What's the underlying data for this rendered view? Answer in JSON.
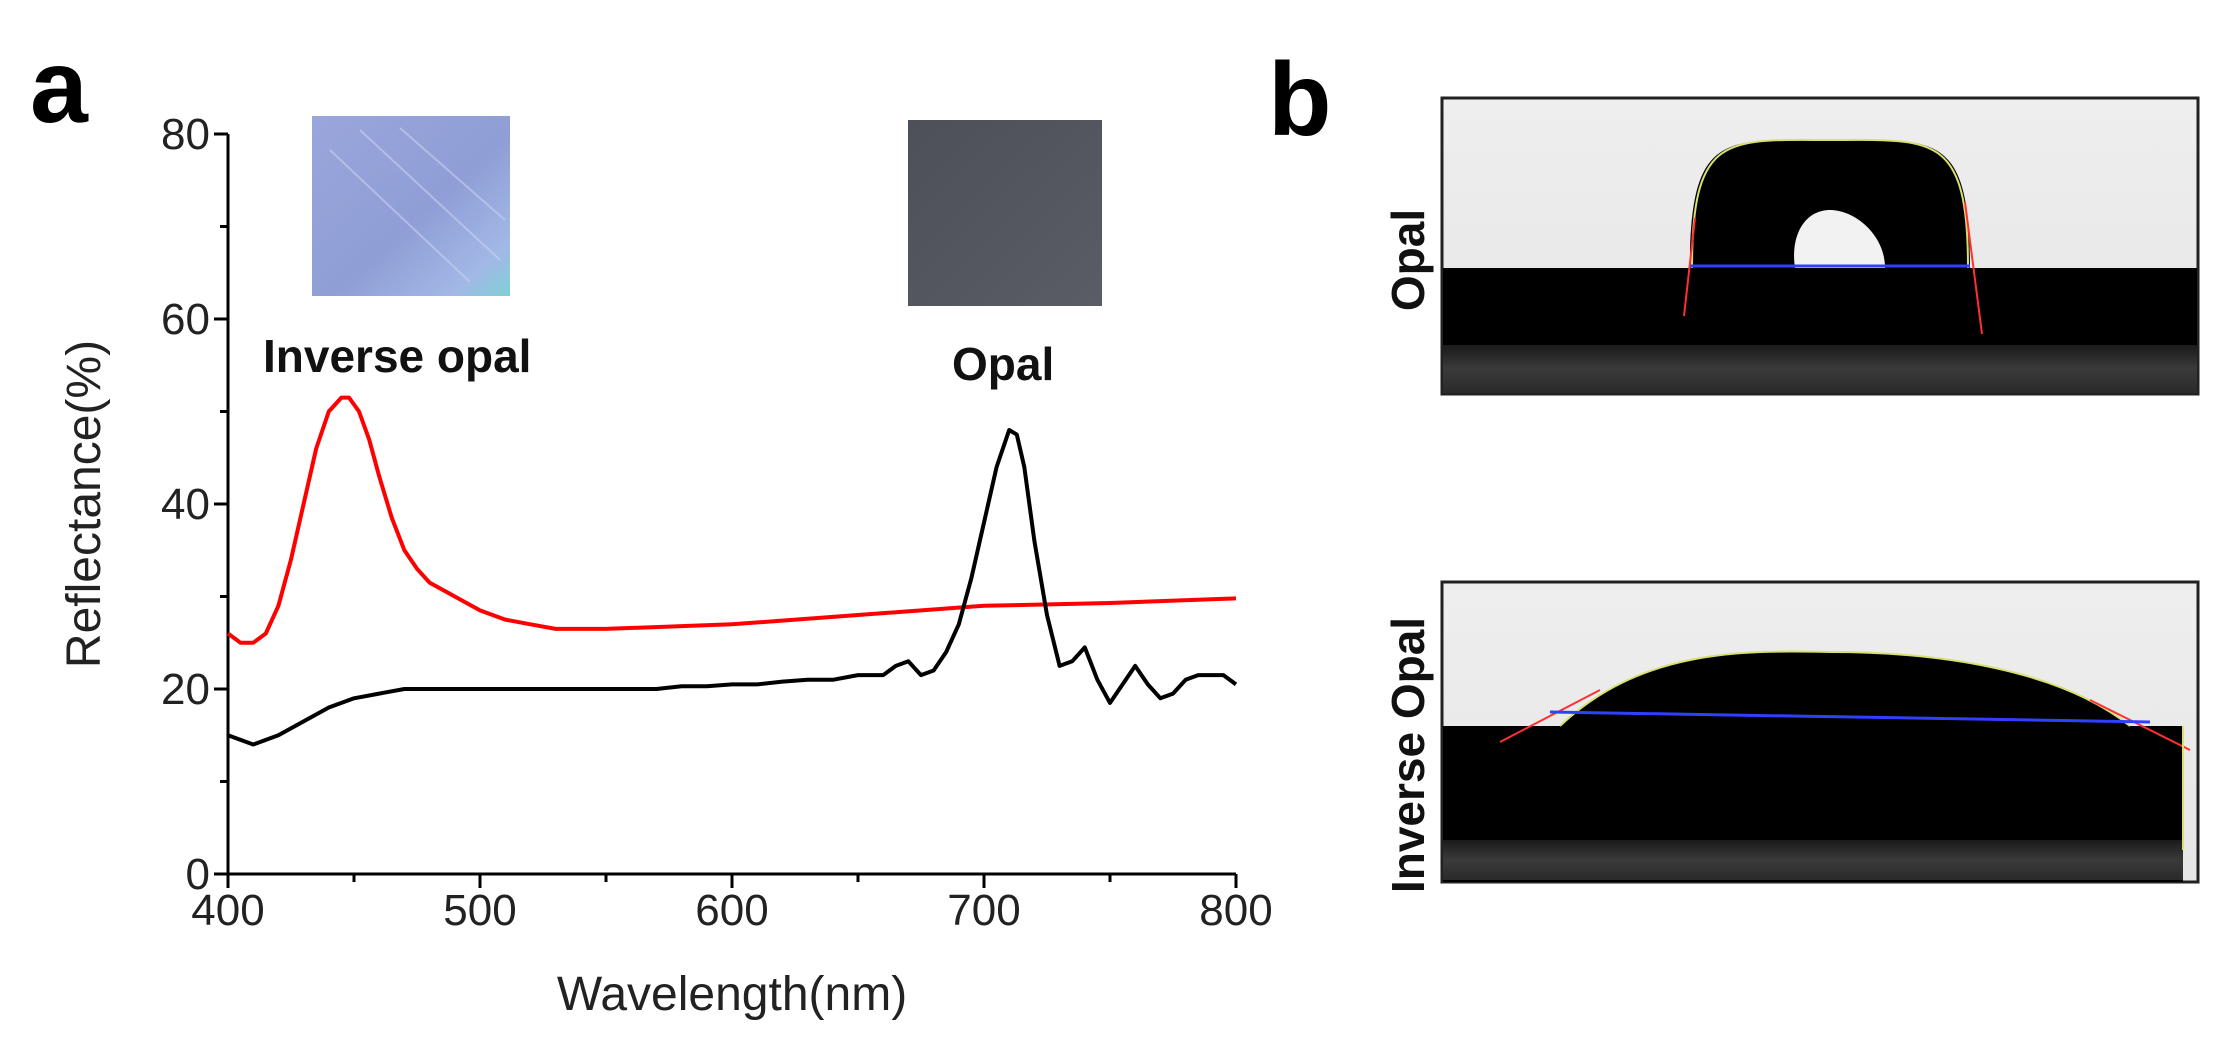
{
  "panel_a_label": "a",
  "panel_b_label": "b",
  "colors": {
    "inverse_opal": "#ff0000",
    "opal": "#000000"
  },
  "chart_data": {
    "type": "line",
    "title": "",
    "xlabel": "Wavelength(nm)",
    "ylabel": "Reflectance(%)",
    "xlim": [
      400,
      800
    ],
    "ylim": [
      0,
      80
    ],
    "xticks": [
      400,
      500,
      600,
      700,
      800
    ],
    "yticks": [
      0,
      20,
      40,
      60,
      80
    ],
    "annotations": [
      "Inverse opal",
      "Opal"
    ],
    "series": [
      {
        "name": "Inverse opal",
        "color": "#ff0000",
        "x": [
          400,
          405,
          410,
          415,
          420,
          425,
          430,
          435,
          440,
          445,
          448,
          452,
          456,
          460,
          465,
          470,
          475,
          480,
          490,
          500,
          510,
          520,
          530,
          550,
          600,
          650,
          700,
          750,
          800
        ],
        "y": [
          26,
          25,
          25,
          26,
          29,
          34,
          40,
          46,
          50,
          51.5,
          51.5,
          50,
          47,
          43,
          38.5,
          35,
          33,
          31.5,
          30,
          28.5,
          27.5,
          27,
          26.5,
          26.5,
          27,
          28,
          29,
          29.3,
          29.8
        ]
      },
      {
        "name": "Opal",
        "color": "#000000",
        "x": [
          400,
          410,
          420,
          430,
          440,
          450,
          460,
          470,
          480,
          490,
          500,
          510,
          520,
          530,
          540,
          550,
          560,
          570,
          580,
          590,
          600,
          610,
          620,
          630,
          640,
          650,
          660,
          665,
          670,
          675,
          680,
          685,
          690,
          695,
          700,
          705,
          710,
          713,
          716,
          720,
          725,
          730,
          735,
          740,
          745,
          750,
          755,
          760,
          765,
          770,
          775,
          780,
          785,
          790,
          795,
          800
        ],
        "y": [
          15,
          14,
          15,
          16.5,
          18,
          19,
          19.5,
          20,
          20,
          20,
          20,
          20,
          20,
          20,
          20,
          20,
          20,
          20,
          20.3,
          20.3,
          20.5,
          20.5,
          20.8,
          21,
          21,
          21.5,
          21.5,
          22.5,
          23,
          21.5,
          22,
          24,
          27,
          32,
          38,
          44,
          48,
          47.5,
          44,
          36,
          28,
          22.5,
          23,
          24.5,
          21,
          18.5,
          20.5,
          22.5,
          20.5,
          19,
          19.5,
          21,
          21.5,
          21.5,
          21.5,
          20.5
        ]
      }
    ]
  },
  "panel_b": {
    "photos": [
      {
        "label": "Opal"
      },
      {
        "label": "Inverse Opal"
      }
    ]
  }
}
